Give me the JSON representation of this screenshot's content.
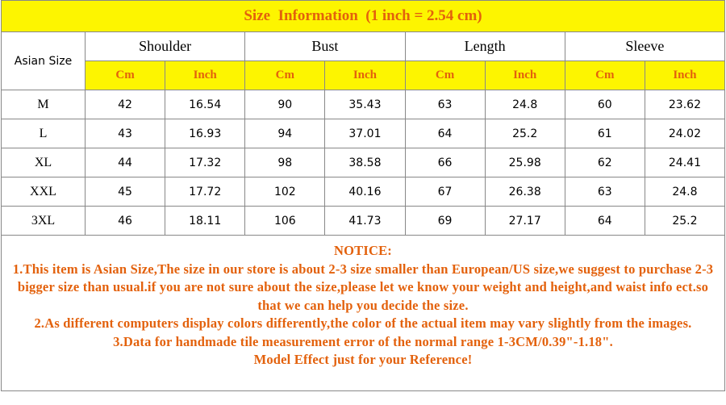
{
  "title": "Size  Information  (1 inch = 2.54 cm)",
  "table": {
    "corner": "Asian Size",
    "groups": [
      "Shoulder",
      "Bust",
      "Length",
      "Sleeve"
    ],
    "units": [
      "Cm",
      "Inch",
      "Cm",
      "Inch",
      "Cm",
      "Inch",
      "Cm",
      "Inch"
    ],
    "rows": [
      [
        "M",
        "42",
        "16.54",
        "90",
        "35.43",
        "63",
        "24.8",
        "60",
        "23.62"
      ],
      [
        "L",
        "43",
        "16.93",
        "94",
        "37.01",
        "64",
        "25.2",
        "61",
        "24.02"
      ],
      [
        "XL",
        "44",
        "17.32",
        "98",
        "38.58",
        "66",
        "25.98",
        "62",
        "24.41"
      ],
      [
        "XXL",
        "45",
        "17.72",
        "102",
        "40.16",
        "67",
        "26.38",
        "63",
        "24.8"
      ],
      [
        "3XL",
        "46",
        "18.11",
        "106",
        "41.73",
        "69",
        "27.17",
        "64",
        "25.2"
      ]
    ]
  },
  "notice": {
    "heading": "NOTICE:",
    "items": [
      "1.This item is Asian Size,The size in our store is about 2-3 size smaller than European/US size,we suggest to purchase 2-3 bigger size than usual.if you are not sure about the size,please let we know your weight and height,and waist info ect.so that we can help you decide the size.",
      "2.As different computers display colors differently,the color of the actual item may vary slightly from the images.",
      "3.Data for handmade tile measurement error of the normal range 1-3CM/0.39\"-1.18\".",
      "Model Effect just for your Reference!"
    ]
  }
}
